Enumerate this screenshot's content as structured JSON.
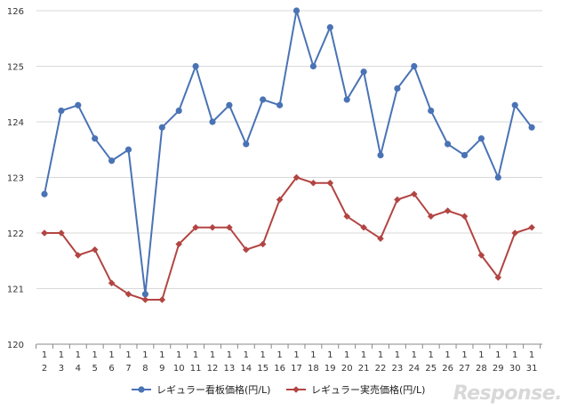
{
  "chart_data": {
    "type": "line",
    "title": "",
    "xlabel": "",
    "ylabel": "",
    "ylim": [
      120,
      126
    ],
    "yticks": [
      "120",
      "121",
      "122",
      "123",
      "124",
      "125",
      "126"
    ],
    "grid": "horizontal",
    "legend_position": "bottom",
    "categories": [
      {
        "top": "1",
        "bottom": "2"
      },
      {
        "top": "1",
        "bottom": "3"
      },
      {
        "top": "1",
        "bottom": "4"
      },
      {
        "top": "1",
        "bottom": "5"
      },
      {
        "top": "1",
        "bottom": "6"
      },
      {
        "top": "1",
        "bottom": "7"
      },
      {
        "top": "1",
        "bottom": "8"
      },
      {
        "top": "1",
        "bottom": "9"
      },
      {
        "top": "1",
        "bottom": "10"
      },
      {
        "top": "1",
        "bottom": "11"
      },
      {
        "top": "1",
        "bottom": "12"
      },
      {
        "top": "1",
        "bottom": "13"
      },
      {
        "top": "1",
        "bottom": "14"
      },
      {
        "top": "1",
        "bottom": "15"
      },
      {
        "top": "1",
        "bottom": "16"
      },
      {
        "top": "1",
        "bottom": "17"
      },
      {
        "top": "1",
        "bottom": "18"
      },
      {
        "top": "1",
        "bottom": "19"
      },
      {
        "top": "1",
        "bottom": "20"
      },
      {
        "top": "1",
        "bottom": "21"
      },
      {
        "top": "1",
        "bottom": "22"
      },
      {
        "top": "1",
        "bottom": "23"
      },
      {
        "top": "1",
        "bottom": "24"
      },
      {
        "top": "1",
        "bottom": "25"
      },
      {
        "top": "1",
        "bottom": "26"
      },
      {
        "top": "1",
        "bottom": "27"
      },
      {
        "top": "1",
        "bottom": "28"
      },
      {
        "top": "1",
        "bottom": "29"
      },
      {
        "top": "1",
        "bottom": "30"
      },
      {
        "top": "1",
        "bottom": "31"
      }
    ],
    "series": [
      {
        "name": "レギュラー看板価格(円/L)",
        "color": "#4a73b5",
        "marker": "circle",
        "values": [
          122.7,
          124.2,
          124.3,
          123.7,
          123.3,
          123.5,
          120.9,
          123.9,
          124.2,
          125.0,
          124.0,
          124.3,
          123.6,
          124.4,
          124.3,
          126.0,
          125.0,
          125.7,
          124.4,
          124.9,
          123.4,
          124.6,
          125.0,
          124.2,
          123.6,
          123.4,
          123.7,
          123.0,
          124.3,
          123.9
        ]
      },
      {
        "name": "レギュラー実売価格(円/L)",
        "color": "#b24543",
        "marker": "diamond",
        "values": [
          122.0,
          122.0,
          121.6,
          121.7,
          121.1,
          120.9,
          120.8,
          120.8,
          121.8,
          122.1,
          122.1,
          122.1,
          121.7,
          121.8,
          122.6,
          123.0,
          122.9,
          122.9,
          122.3,
          122.1,
          121.9,
          122.6,
          122.7,
          122.3,
          122.4,
          122.3,
          121.6,
          121.2,
          122.0,
          122.1
        ]
      }
    ]
  },
  "watermark": "Response."
}
